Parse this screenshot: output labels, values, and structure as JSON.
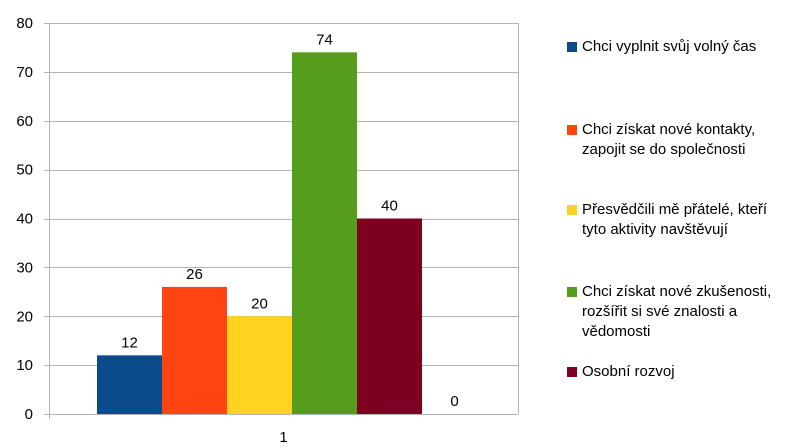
{
  "chart_data": {
    "type": "bar",
    "categories": [
      "1"
    ],
    "series": [
      {
        "name": "Chci vyplnit svůj volný čas",
        "values": [
          12
        ],
        "color": "#0B4A8B"
      },
      {
        "name": "Chci získat nové kontakty, zapojit se do společnosti",
        "values": [
          26
        ],
        "color": "#FF4412"
      },
      {
        "name": "Přesvědčili mě přátelé, kteří tyto aktivity navštěvují",
        "values": [
          20
        ],
        "color": "#FFD320"
      },
      {
        "name": "Chci získat nové zkušenosti, rozšířit si své znalosti a vědomosti",
        "values": [
          74
        ],
        "color": "#579D1C"
      },
      {
        "name": "Osobní rozvoj",
        "values": [
          40
        ],
        "color": "#7E0021"
      },
      {
        "name": "",
        "values": [
          0
        ],
        "color": "#83CAFF"
      }
    ],
    "ylim": [
      0,
      80
    ],
    "yticks": [
      "0",
      "10",
      "20",
      "30",
      "40",
      "50",
      "60",
      "70",
      "80"
    ],
    "grid": true,
    "legend_position": "right",
    "data_labels": [
      "12",
      "26",
      "20",
      "74",
      "40",
      "0"
    ]
  },
  "legend": {
    "items": [
      {
        "lines": [
          "Chci vyplnit svůj volný čas"
        ],
        "color": "#0B4A8B"
      },
      {
        "lines": [
          "Chci získat nové kontakty,",
          "zapojit se do společnosti"
        ],
        "color": "#FF4412"
      },
      {
        "lines": [
          "Přesvědčili mě přátelé, kteří",
          "tyto aktivity navštěvují"
        ],
        "color": "#FFD320"
      },
      {
        "lines": [
          "Chci získat nové zkušenosti,",
          "rozšířit si své znalosti a",
          "vědomosti"
        ],
        "color": "#579D1C"
      },
      {
        "lines": [
          "Osobní rozvoj"
        ],
        "color": "#7E0021"
      }
    ]
  }
}
